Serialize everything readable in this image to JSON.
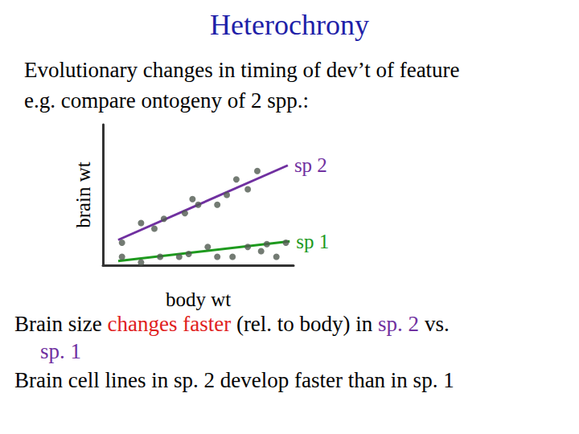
{
  "slide": {
    "title": "Heterochrony",
    "intro": [
      "Evolutionary changes in timing of dev’t of feature",
      "e.g. compare ontogeny of 2 spp.:"
    ],
    "notes": [
      [
        {
          "text": "Brain size "
        },
        {
          "text": "changes faster",
          "color": "#e02020"
        },
        {
          "text": " (rel. to body) in "
        },
        {
          "text": "sp. 2",
          "color": "#7030a0"
        },
        {
          "text": " vs."
        }
      ],
      [
        {
          "text": "sp. 1",
          "color": "#7030a0"
        }
      ],
      [
        {
          "text": "Brain cell lines in sp. 2 develop faster than in sp. 1"
        }
      ]
    ]
  },
  "chart_data": {
    "type": "scatter",
    "x_label": "body wt",
    "y_label": "brain wt",
    "xlim": [
      0,
      10
    ],
    "ylim": [
      0,
      10
    ],
    "tick_labels": false,
    "grid": false,
    "series": [
      {
        "name": "sp 2",
        "color": "#7030a0",
        "x": [
          1.0,
          2.0,
          2.7,
          3.2,
          4.3,
          4.7,
          5.0,
          6.0,
          6.5,
          7.0,
          7.6,
          8.1
        ],
        "values": [
          1.6,
          3.0,
          2.6,
          3.3,
          3.7,
          4.7,
          4.3,
          4.3,
          5.0,
          6.1,
          5.4,
          6.7
        ],
        "trend": {
          "x": [
            0.8,
            9.7
          ],
          "values": [
            1.8,
            7.1
          ]
        }
      },
      {
        "name": "sp 1",
        "color": "#1e9a1e",
        "x": [
          1.0,
          2.0,
          3.0,
          4.0,
          4.5,
          5.5,
          6.0,
          6.8,
          7.6,
          8.3,
          8.6,
          9.1,
          9.6
        ],
        "values": [
          0.6,
          0.2,
          0.6,
          0.6,
          0.8,
          1.3,
          0.6,
          0.6,
          1.3,
          1.0,
          1.5,
          0.6,
          1.6
        ],
        "trend": {
          "x": [
            0.8,
            9.8
          ],
          "values": [
            0.3,
            1.7
          ]
        }
      }
    ]
  }
}
